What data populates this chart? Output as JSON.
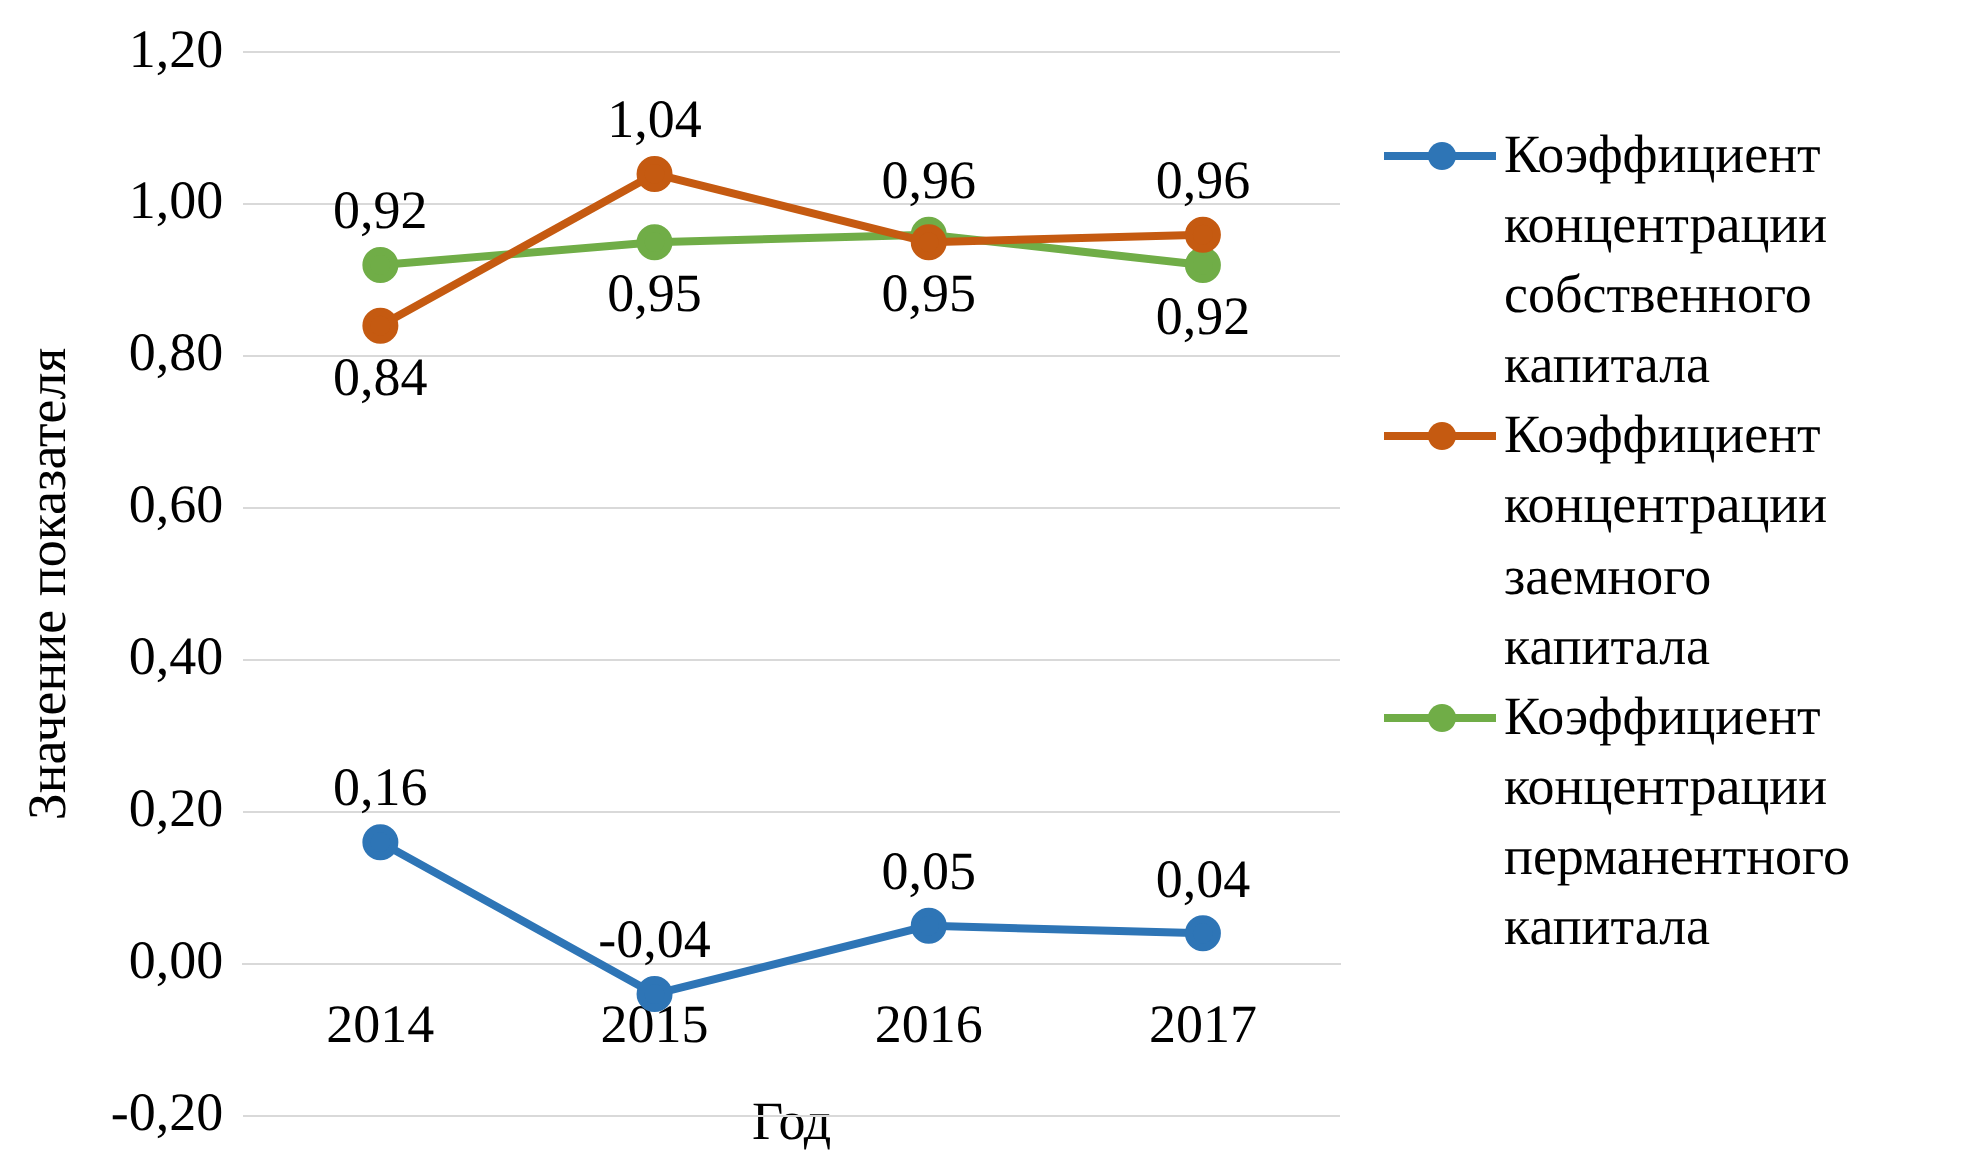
{
  "chart_data": {
    "type": "line",
    "ylabel": "Значение показателя",
    "xlabel": "Год",
    "categories": [
      "2014",
      "2015",
      "2016",
      "2017"
    ],
    "series": [
      {
        "name": "Коэффициент концентрации собственного капитала",
        "color": "#2e75b6",
        "values": [
          0.16,
          -0.04,
          0.05,
          0.04
        ],
        "value_labels": [
          "0,16",
          "-0,04",
          "0,05",
          "0,04"
        ]
      },
      {
        "name": "Коэффициент концентрации заемного капитала",
        "color": "#c55a11",
        "values": [
          0.84,
          1.04,
          0.95,
          0.96
        ],
        "value_labels": [
          "0,84",
          "1,04",
          "0,95",
          "0,96"
        ]
      },
      {
        "name": "Коэффициент концентрации перманентного капитала",
        "color": "#70ad47",
        "values": [
          0.92,
          0.95,
          0.96,
          0.92
        ],
        "value_labels": [
          "0,92",
          "0,95",
          "0,96",
          "0,92"
        ]
      }
    ],
    "ylim": [
      -0.2,
      1.2
    ],
    "yticks": [
      {
        "value": -0.2,
        "label": "-0,20"
      },
      {
        "value": 0,
        "label": "0,00"
      },
      {
        "value": 0.2,
        "label": "0,20"
      },
      {
        "value": 0.4,
        "label": "0,40"
      },
      {
        "value": 0.6,
        "label": "0,60"
      },
      {
        "value": 0.8,
        "label": "0,80"
      },
      {
        "value": 1,
        "label": "1,00"
      },
      {
        "value": 1.2,
        "label": "1,20"
      }
    ],
    "grid": "y",
    "legend": "right",
    "marker": "circle",
    "line_style": "solid"
  }
}
